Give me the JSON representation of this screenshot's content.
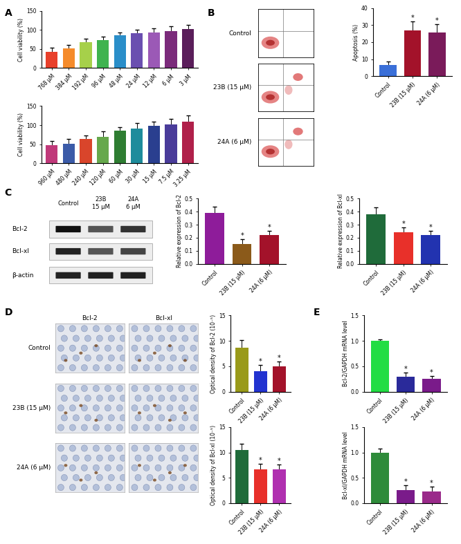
{
  "panel_labels": [
    "A",
    "B",
    "C",
    "D",
    "E"
  ],
  "chart_data": [
    {
      "type": "bar",
      "y_label": "Cell viability (%)",
      "categories": [
        "768 μM",
        "384 μM",
        "192 μM",
        "96 μM",
        "48 μM",
        "24 μM",
        "12 μM",
        "6 μM",
        "3 μM"
      ],
      "values": [
        42,
        52,
        67,
        74,
        86,
        91,
        93,
        97,
        102
      ],
      "errors": [
        12,
        8,
        10,
        8,
        8,
        10,
        12,
        12,
        12
      ],
      "colors": [
        "#E8402B",
        "#F58B2B",
        "#A6D04A",
        "#3FB34F",
        "#2A8EC9",
        "#6A4FB0",
        "#9B59B6",
        "#7B2B7B",
        "#5A1E5A"
      ],
      "ylim": [
        0,
        150
      ],
      "yticks": [
        0,
        50,
        100,
        150
      ]
    },
    {
      "type": "bar",
      "y_label": "Cell viability (%)",
      "categories": [
        "960 μM",
        "480 μM",
        "240 μM",
        "120 μM",
        "60 μM",
        "30 μM",
        "15 μM",
        "7.5 μM",
        "3.25 μM"
      ],
      "values": [
        47,
        51,
        63,
        70,
        85,
        91,
        98,
        102,
        110
      ],
      "errors": [
        12,
        12,
        9,
        14,
        10,
        14,
        12,
        15,
        15
      ],
      "colors": [
        "#C0397A",
        "#3B5BA8",
        "#D9452B",
        "#66A84C",
        "#2E7D32",
        "#1E8C9C",
        "#2A3F8F",
        "#4A3C9A",
        "#B0204A"
      ],
      "ylim": [
        0,
        150
      ],
      "yticks": [
        0,
        50,
        100,
        150
      ]
    },
    {
      "type": "bar",
      "y_label": "Apoptosis (%)",
      "categories": [
        "Control",
        "23B (15 μM)",
        "24A (6 μM)"
      ],
      "values": [
        6.5,
        27,
        25.5
      ],
      "errors": [
        2,
        5,
        5
      ],
      "significance": [
        null,
        "*",
        "*"
      ],
      "colors": [
        "#3A6FD8",
        "#A3122A",
        "#7A1B5A"
      ],
      "ylim": [
        0,
        40
      ],
      "yticks": [
        0,
        10,
        20,
        30,
        40
      ]
    },
    {
      "type": "bar",
      "y_label": "Relative expression of Bcl-2",
      "categories": [
        "Control",
        "23B (15 μM)",
        "24A (6 μM)"
      ],
      "values": [
        0.39,
        0.15,
        0.22
      ],
      "errors": [
        0.05,
        0.04,
        0.03
      ],
      "significance": [
        null,
        "*",
        "*"
      ],
      "colors": [
        "#8E1C9A",
        "#8B5A1A",
        "#A3122A"
      ],
      "ylim": [
        0,
        0.5
      ],
      "yticks": [
        {
          "value": 0,
          "label": "0.0"
        },
        0.1,
        0.2,
        0.3,
        0.4,
        0.5
      ]
    },
    {
      "type": "bar",
      "y_label": "Relative expression of Bcl-xl",
      "categories": [
        "Control",
        "23B (15 μM)",
        "24A (6 μM)"
      ],
      "values": [
        0.38,
        0.24,
        0.22
      ],
      "errors": [
        0.05,
        0.04,
        0.03
      ],
      "significance": [
        null,
        "*",
        "*"
      ],
      "colors": [
        "#1F6B3A",
        "#E8302A",
        "#2233B0"
      ],
      "ylim": [
        0,
        0.5
      ],
      "yticks": [
        {
          "value": 0,
          "label": "0.0"
        },
        0.1,
        0.2,
        0.3,
        0.4,
        0.5
      ]
    },
    {
      "type": "bar",
      "y_label": "Optical density of Bcl-2 (10⁻⁵)",
      "categories": [
        "Control",
        "23B (15 μM)",
        "24A (6 μM)"
      ],
      "values": [
        8.7,
        4.1,
        5.0
      ],
      "errors": [
        1.4,
        1.2,
        1.0
      ],
      "significance": [
        null,
        "*",
        "*"
      ],
      "colors": [
        "#999A1A",
        "#2233D0",
        "#A3122A"
      ],
      "ylim": [
        0,
        15
      ],
      "yticks": [
        0,
        5,
        10,
        15
      ]
    },
    {
      "type": "bar",
      "y_label": "Optical density of Bcl-xl (10⁻⁵)",
      "categories": [
        "Control",
        "23B (15 μM)",
        "24A (6 μM)"
      ],
      "values": [
        10.5,
        6.7,
        6.6
      ],
      "errors": [
        1.2,
        1.0,
        1.0
      ],
      "significance": [
        null,
        "*",
        "*"
      ],
      "colors": [
        "#1F6B3A",
        "#E8302A",
        "#B030B0"
      ],
      "ylim": [
        0,
        15
      ],
      "yticks": [
        0,
        5,
        10,
        15
      ]
    },
    {
      "type": "bar",
      "y_label": "Bcl-2/GAPDH mRNA level",
      "categories": [
        "Control",
        "23B (15 μM)",
        "24A (6 μM)"
      ],
      "values": [
        1.0,
        0.3,
        0.25
      ],
      "errors": [
        0.03,
        0.08,
        0.06
      ],
      "significance": [
        null,
        "*",
        "*"
      ],
      "colors": [
        "#22DD44",
        "#2A2A9A",
        "#7A1B8A"
      ],
      "ylim": [
        0,
        1.5
      ],
      "yticks": [
        {
          "value": 0,
          "label": "0.0"
        },
        0.5,
        {
          "value": 1,
          "label": "1.0"
        },
        1.5
      ]
    },
    {
      "type": "bar",
      "y_label": "Bcl-xl/GAPDH mRNA level",
      "categories": [
        "Control",
        "23B (15 μM)",
        "24A (6 μM)"
      ],
      "values": [
        1.0,
        0.26,
        0.23
      ],
      "errors": [
        0.08,
        0.1,
        0.1
      ],
      "significance": [
        null,
        "*",
        "*"
      ],
      "colors": [
        "#2E8B3A",
        "#7A1B8A",
        "#9A2A8A"
      ],
      "ylim": [
        0,
        1.5
      ],
      "yticks": [
        {
          "value": 0,
          "label": "0.0"
        },
        0.5,
        {
          "value": 1,
          "label": "1.0"
        },
        1.5
      ]
    }
  ],
  "flow_cytometry": {
    "labels": [
      "Control",
      "23B (15 μM)",
      "24A (6 μM)"
    ]
  },
  "western_blot": {
    "lanes": [
      "Control",
      "23B\n15 μM",
      "24A\n6 μM"
    ],
    "rows": [
      "Bcl-2",
      "Bcl-xl",
      "β-actin"
    ]
  },
  "ihc": {
    "columns": [
      "Bcl-2",
      "Bcl-xl"
    ],
    "rows": [
      "Control",
      "23B (15 μM)",
      "24A (6 μM)"
    ]
  }
}
